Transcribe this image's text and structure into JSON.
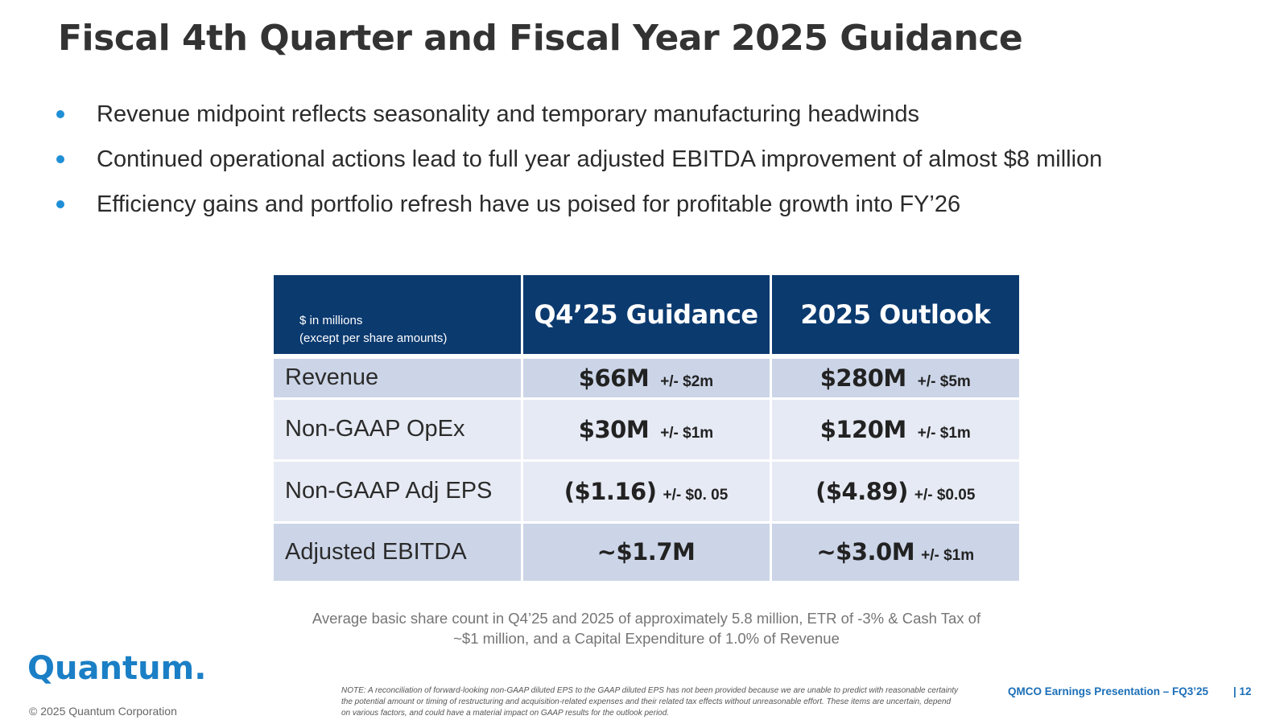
{
  "slide": {
    "title": "Fiscal 4th Quarter and Fiscal Year 2025 Guidance",
    "bullets": [
      "Revenue midpoint reflects seasonality and temporary manufacturing headwinds",
      "Continued operational actions lead to full year adjusted EBITDA improvement of almost $8 million",
      "Efficiency gains and portfolio refresh have us poised for profitable growth into FY’26"
    ]
  },
  "table": {
    "units_line1": "$ in millions",
    "units_line2": "(except per share amounts)",
    "columns": [
      "Q4’25 Guidance",
      "2025 Outlook"
    ],
    "rows": [
      {
        "label": "Revenue",
        "q4": {
          "value": "$66M",
          "range": "+/- $2m"
        },
        "fy": {
          "value": "$280M",
          "range": "+/- $5m"
        }
      },
      {
        "label": "Non-GAAP OpEx",
        "q4": {
          "value": "$30M",
          "range": "+/- $1m"
        },
        "fy": {
          "value": "$120M",
          "range": "+/- $1m"
        }
      },
      {
        "label": "Non-GAAP Adj EPS",
        "q4": {
          "value": "($1.16)",
          "range": "+/- $0. 05"
        },
        "fy": {
          "value": "($4.89)",
          "range": "+/- $0.05"
        }
      },
      {
        "label": "Adjusted EBITDA",
        "q4": {
          "value": "~$1.7M",
          "range": ""
        },
        "fy": {
          "value": "~$3.0M",
          "range": "+/- $1m"
        }
      }
    ],
    "footnote_line1": "Average basic share count in Q4’25 and 2025 of approximately 5.8 million,  ETR of -3% & Cash Tax of",
    "footnote_line2": "~$1 million, and a Capital Expenditure of 1.0% of Revenue"
  },
  "footer": {
    "logo_text": "Quantum.",
    "copyright": "© 2025 Quantum Corporation",
    "note": "NOTE: A reconciliation of forward-looking non-GAAP diluted EPS to the GAAP diluted EPS has not been provided because we are unable to predict with reasonable certainty the potential amount or timing of restructuring and acquisition-related expenses and their related tax effects without unreasonable effort. These items are uncertain, depend on various factors, and could have a material impact on GAAP results for the outlook period.",
    "presentation_name": "QMCO Earnings Presentation – FQ3’25",
    "page_number": "| 12"
  },
  "colors": {
    "header_blue": "#0b3a6f",
    "row_dark": "#ccd5e8",
    "row_light": "#e6eaf4",
    "bullet_blue": "#1f8fd6",
    "logo_blue": "#1b7fc6"
  }
}
